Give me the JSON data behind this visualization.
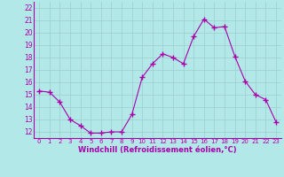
{
  "x": [
    0,
    1,
    2,
    3,
    4,
    5,
    6,
    7,
    8,
    9,
    10,
    11,
    12,
    13,
    14,
    15,
    16,
    17,
    18,
    19,
    20,
    21,
    22,
    23
  ],
  "y": [
    15.3,
    15.2,
    14.4,
    13.0,
    12.5,
    11.9,
    11.9,
    12.0,
    12.0,
    13.4,
    16.4,
    17.5,
    18.3,
    18.0,
    17.5,
    19.7,
    21.1,
    20.4,
    20.5,
    18.1,
    16.1,
    15.0,
    14.6,
    12.8
  ],
  "line_color": "#aa00aa",
  "marker": "+",
  "marker_size": 4,
  "bg_color": "#b2e8e8",
  "grid_color": "#9ecece",
  "xlabel": "Windchill (Refroidissement éolien,°C)",
  "xlabel_color": "#aa00aa",
  "tick_color": "#aa00aa",
  "ylim": [
    11.5,
    22.5
  ],
  "xlim": [
    -0.5,
    23.5
  ],
  "yticks": [
    12,
    13,
    14,
    15,
    16,
    17,
    18,
    19,
    20,
    21,
    22
  ],
  "xticks": [
    0,
    1,
    2,
    3,
    4,
    5,
    6,
    7,
    8,
    9,
    10,
    11,
    12,
    13,
    14,
    15,
    16,
    17,
    18,
    19,
    20,
    21,
    22,
    23
  ]
}
